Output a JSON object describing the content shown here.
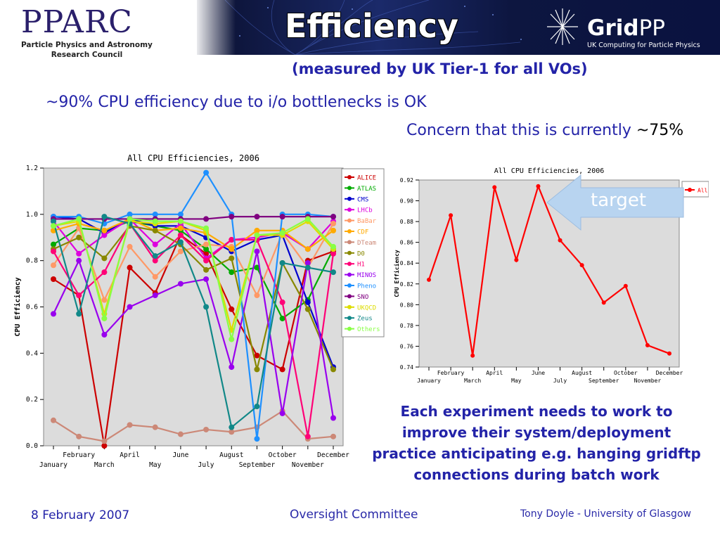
{
  "header": {
    "title": "Efficiency",
    "subtitle": "(measured by UK Tier-1 for all VOs)",
    "pparc_logo": "PPARC",
    "pparc_line1": "Particle Physics and Astronomy",
    "pparc_line2": "Research Council",
    "gridpp_grid": "Grid",
    "gridpp_pp": "PP",
    "gridpp_tagline": "UK Computing for Particle Physics"
  },
  "body": {
    "bullet1": "~90% CPU efficiency due to i/o bottlenecks is OK",
    "concern_text": "Concern that this is currently ",
    "concern_value": "~75%",
    "target_label": "target",
    "note": "Each experiment needs to work to improve their system/deployment practice anticipating e.g. hanging gridftp connections during batch work"
  },
  "footer": {
    "date": "8 February 2007",
    "center": "Oversight Committee",
    "right": "Tony Doyle - University of Glasgow"
  },
  "colors": {
    "accent_blue": "#2323a8",
    "plot_bg": "#dcdcdc",
    "target_arrow": "#b8d4f0"
  },
  "chart_data": [
    {
      "type": "line",
      "title": "All CPU Efficiencies, 2006",
      "ylabel": "CPU Efficiency",
      "xlabel": "",
      "ylim": [
        0.0,
        1.2
      ],
      "yticks": [
        "0.0",
        "0.2",
        "0.4",
        "0.6",
        "0.8",
        "1.0",
        "1.2"
      ],
      "categories": [
        "January",
        "February",
        "March",
        "April",
        "May",
        "June",
        "July",
        "August",
        "September",
        "October",
        "November",
        "December"
      ],
      "grid": "off",
      "legend": "right",
      "series": [
        {
          "name": "ALICE",
          "color": "#cc0000",
          "values": [
            0.72,
            0.65,
            0.0,
            0.77,
            0.66,
            0.91,
            0.83,
            0.59,
            0.39,
            0.33,
            0.8,
            0.84
          ]
        },
        {
          "name": "ATLAS",
          "color": "#00aa00",
          "values": [
            0.87,
            0.94,
            0.93,
            0.97,
            0.95,
            0.93,
            0.85,
            0.75,
            0.77,
            0.55,
            0.63,
            0.85
          ]
        },
        {
          "name": "CMS",
          "color": "#0000cc",
          "values": [
            0.99,
            0.98,
            0.92,
            0.98,
            0.95,
            0.95,
            0.9,
            0.84,
            0.89,
            0.91,
            0.62,
            0.34
          ]
        },
        {
          "name": "LHCb",
          "color": "#dd00dd",
          "values": [
            0.97,
            0.83,
            0.91,
            0.98,
            0.87,
            0.96,
            0.81,
            0.89,
            0.9,
            0.92,
            0.85,
            0.97
          ]
        },
        {
          "name": "BaBar",
          "color": "#ff9966",
          "values": [
            0.78,
            0.94,
            0.63,
            0.86,
            0.73,
            0.84,
            0.87,
            0.86,
            0.65,
            0.92,
            0.77,
            0.96
          ]
        },
        {
          "name": "CDF",
          "color": "#ffaa00",
          "values": [
            0.93,
            0.96,
            0.93,
            0.98,
            0.93,
            0.94,
            0.92,
            0.85,
            0.93,
            0.93,
            0.85,
            0.93
          ]
        },
        {
          "name": "DTeam",
          "color": "#cc8877",
          "values": [
            0.11,
            0.04,
            0.02,
            0.09,
            0.08,
            0.05,
            0.07,
            0.06,
            0.08,
            0.15,
            0.03,
            0.04
          ]
        },
        {
          "name": "D0",
          "color": "#888800",
          "values": [
            0.85,
            0.9,
            0.81,
            0.95,
            0.93,
            0.87,
            0.76,
            0.81,
            0.33,
            0.79,
            0.59,
            0.33
          ]
        },
        {
          "name": "H1",
          "color": "#ff0077",
          "values": [
            0.84,
            0.65,
            0.75,
            0.96,
            0.8,
            0.91,
            0.8,
            0.89,
            0.89,
            0.62,
            0.04,
            0.83
          ]
        },
        {
          "name": "MINOS",
          "color": "#9900ee",
          "values": [
            0.57,
            0.8,
            0.48,
            0.6,
            0.65,
            0.7,
            0.72,
            0.34,
            0.84,
            0.14,
            0.79,
            0.12
          ]
        },
        {
          "name": "Pheno",
          "color": "#1e90ff",
          "values": [
            0.99,
            0.99,
            0.96,
            1.0,
            1.0,
            1.0,
            1.18,
            1.0,
            0.03,
            1.0,
            1.0,
            0.99
          ]
        },
        {
          "name": "SNO",
          "color": "#800080",
          "values": [
            0.98,
            0.98,
            0.98,
            0.98,
            0.98,
            0.98,
            0.98,
            0.99,
            0.99,
            0.99,
            0.99,
            0.99
          ]
        },
        {
          "name": "UKQCD",
          "color": "#dddd00",
          "values": [
            0.95,
            0.97,
            0.57,
            0.97,
            0.96,
            0.97,
            0.93,
            0.5,
            0.91,
            0.91,
            0.97,
            0.85
          ]
        },
        {
          "name": "Zeus",
          "color": "#118888",
          "values": [
            0.97,
            0.57,
            0.99,
            0.96,
            0.82,
            0.88,
            0.6,
            0.08,
            0.17,
            0.79,
            0.77,
            0.75
          ]
        },
        {
          "name": "Others",
          "color": "#88ff44",
          "values": [
            0.95,
            0.98,
            0.55,
            0.98,
            0.97,
            0.97,
            0.94,
            0.46,
            0.91,
            0.92,
            0.98,
            0.86
          ]
        }
      ]
    },
    {
      "type": "line",
      "title": "All CPU Efficiencies, 2006",
      "ylabel": "CPU Efficiency",
      "xlabel": "",
      "ylim": [
        0.74,
        0.92
      ],
      "yticks": [
        "0.74",
        "0.76",
        "0.78",
        "0.80",
        "0.82",
        "0.84",
        "0.86",
        "0.88",
        "0.90",
        "0.92"
      ],
      "categories": [
        "January",
        "February",
        "March",
        "April",
        "May",
        "June",
        "July",
        "August",
        "September",
        "October",
        "November",
        "December"
      ],
      "grid": "off",
      "legend": "top-right",
      "series": [
        {
          "name": "All",
          "color": "#ff0000",
          "values": [
            0.824,
            0.886,
            0.751,
            0.913,
            0.843,
            0.914,
            0.862,
            0.838,
            0.802,
            0.818,
            0.761,
            0.753
          ]
        }
      ]
    }
  ]
}
